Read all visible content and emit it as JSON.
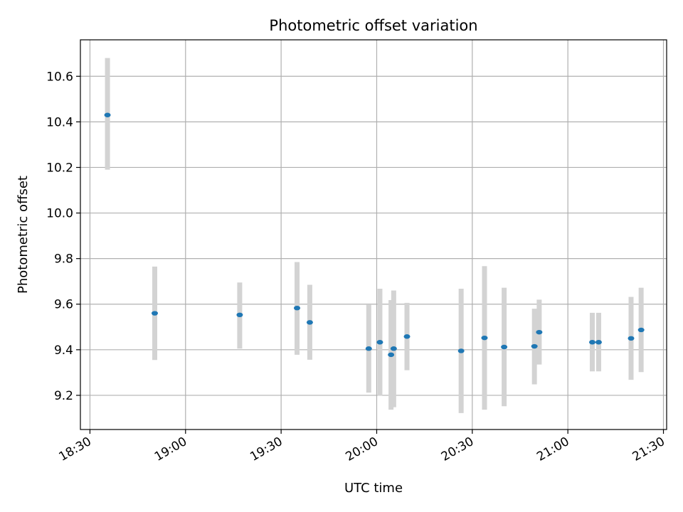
{
  "chart_data": {
    "type": "scatter",
    "title": "Photometric offset variation",
    "xlabel": "UTC time",
    "ylabel": "Photometric offset",
    "x_ticks": [
      "18:30",
      "19:00",
      "19:30",
      "20:00",
      "20:30",
      "21:00",
      "21:30"
    ],
    "xlim": [
      "18:27",
      "21:31"
    ],
    "y_ticks": [
      9.2,
      9.4,
      9.6,
      9.8,
      10.0,
      10.2,
      10.4,
      10.6
    ],
    "ylim": [
      9.05,
      10.76
    ],
    "grid": true,
    "error_bar_color": "#d3d3d3",
    "marker_color": "#1f77b4",
    "points": [
      {
        "t": "18:35:30",
        "y": 10.43,
        "lo": 10.19,
        "hi": 10.68
      },
      {
        "t": "18:50:20",
        "y": 9.56,
        "lo": 9.355,
        "hi": 9.765
      },
      {
        "t": "19:17:00",
        "y": 9.553,
        "lo": 9.405,
        "hi": 9.695
      },
      {
        "t": "19:35:00",
        "y": 9.583,
        "lo": 9.378,
        "hi": 9.785
      },
      {
        "t": "19:39:00",
        "y": 9.52,
        "lo": 9.356,
        "hi": 9.685
      },
      {
        "t": "19:57:30",
        "y": 9.405,
        "lo": 9.212,
        "hi": 9.597
      },
      {
        "t": "20:01:00",
        "y": 9.433,
        "lo": 9.198,
        "hi": 9.668
      },
      {
        "t": "20:04:30",
        "y": 9.378,
        "lo": 9.137,
        "hi": 9.618
      },
      {
        "t": "20:05:20",
        "y": 9.405,
        "lo": 9.148,
        "hi": 9.66
      },
      {
        "t": "20:09:30",
        "y": 9.458,
        "lo": 9.31,
        "hi": 9.606
      },
      {
        "t": "20:26:30",
        "y": 9.395,
        "lo": 9.122,
        "hi": 9.668
      },
      {
        "t": "20:33:50",
        "y": 9.452,
        "lo": 9.137,
        "hi": 9.767
      },
      {
        "t": "20:40:00",
        "y": 9.412,
        "lo": 9.152,
        "hi": 9.672
      },
      {
        "t": "20:49:30",
        "y": 9.415,
        "lo": 9.248,
        "hi": 9.58
      },
      {
        "t": "20:51:00",
        "y": 9.477,
        "lo": 9.335,
        "hi": 9.62
      },
      {
        "t": "21:07:40",
        "y": 9.433,
        "lo": 9.305,
        "hi": 9.562
      },
      {
        "t": "21:09:40",
        "y": 9.433,
        "lo": 9.305,
        "hi": 9.562
      },
      {
        "t": "21:19:50",
        "y": 9.45,
        "lo": 9.268,
        "hi": 9.632
      },
      {
        "t": "21:23:00",
        "y": 9.487,
        "lo": 9.302,
        "hi": 9.672
      }
    ]
  }
}
